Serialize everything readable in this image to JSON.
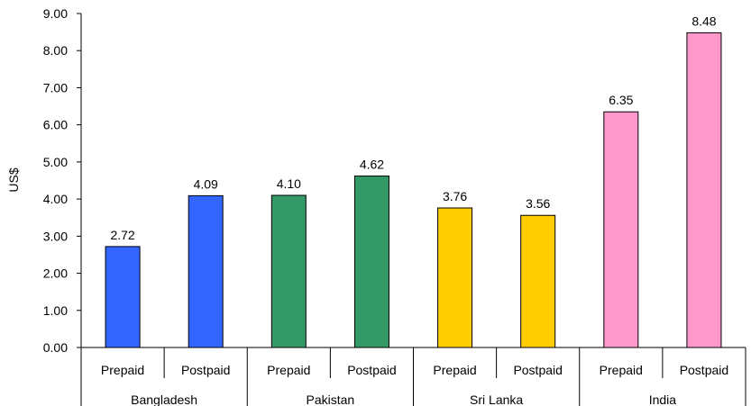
{
  "chart_data": {
    "type": "bar",
    "ylabel": "US$",
    "ylim": [
      0,
      9
    ],
    "ytick_step": 1,
    "ytick_labels": [
      "0.00",
      "1.00",
      "2.00",
      "3.00",
      "4.00",
      "5.00",
      "6.00",
      "7.00",
      "8.00",
      "9.00"
    ],
    "grid": false,
    "legend": "none",
    "groups": [
      {
        "name": "Bangladesh",
        "color": "#3366ff",
        "bars": [
          {
            "category": "Prepaid",
            "value": 2.72,
            "label": "2.72"
          },
          {
            "category": "Postpaid",
            "value": 4.09,
            "label": "4.09"
          }
        ]
      },
      {
        "name": "Pakistan",
        "color": "#339966",
        "bars": [
          {
            "category": "Prepaid",
            "value": 4.1,
            "label": "4.10"
          },
          {
            "category": "Postpaid",
            "value": 4.62,
            "label": "4.62"
          }
        ]
      },
      {
        "name": "Sri Lanka",
        "color": "#ffcc00",
        "bars": [
          {
            "category": "Prepaid",
            "value": 3.76,
            "label": "3.76"
          },
          {
            "category": "Postpaid",
            "value": 3.56,
            "label": "3.56"
          }
        ]
      },
      {
        "name": "India",
        "color": "#ff99cc",
        "bars": [
          {
            "category": "Prepaid",
            "value": 6.35,
            "label": "6.35"
          },
          {
            "category": "Postpaid",
            "value": 8.48,
            "label": "8.48"
          }
        ]
      }
    ]
  }
}
